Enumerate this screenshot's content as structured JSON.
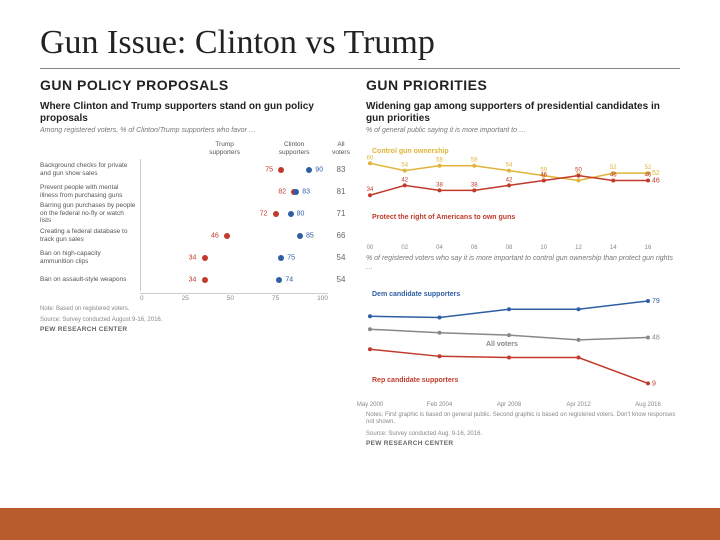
{
  "slide": {
    "title": "Gun Issue: Clinton vs Trump"
  },
  "left": {
    "heading": "GUN POLICY PROPOSALS",
    "chart": {
      "title": "Where Clinton and Trump supporters stand on gun policy proposals",
      "sub": "Among registered voters, % of Clinton/Trump supporters who favor …",
      "legend": {
        "trump": "Trump supporters",
        "clinton": "Clinton supporters",
        "all": "All voters"
      },
      "colors": {
        "trump": "#c13a2b",
        "clinton": "#2e5ea3",
        "axis": "#cccccc"
      },
      "xmin": 0,
      "xmax": 100,
      "xticks": [
        0,
        25,
        50,
        75,
        100
      ],
      "rows": [
        {
          "label": "Background checks for private and gun show sales",
          "trump": 75,
          "clinton": 90,
          "all": 83
        },
        {
          "label": "Prevent people with mental illness from purchasing guns",
          "trump": 82,
          "clinton": 83,
          "all": 81
        },
        {
          "label": "Barring gun purchases by people on the federal no-fly or watch lists",
          "trump": 72,
          "clinton": 80,
          "all": 71
        },
        {
          "label": "Creating a federal database to track gun sales",
          "trump": 46,
          "clinton": 85,
          "all": 66
        },
        {
          "label": "Ban on high-capacity ammunition clips",
          "trump": 34,
          "clinton": 75,
          "all": 54
        },
        {
          "label": "Ban on assault-style weapons",
          "trump": 34,
          "clinton": 74,
          "all": 54
        }
      ],
      "note1": "Note: Based on registered voters.",
      "note2": "Source: Survey conducted August 9-16, 2016.",
      "source": "PEW RESEARCH CENTER"
    }
  },
  "right": {
    "heading": "GUN PRIORITIES",
    "top_chart": {
      "title": "Widening gap among supporters of presidential candidates in gun priorities",
      "sub": "% of general public saying it is more important to …",
      "series": {
        "control": {
          "label": "Control gun ownership",
          "color": "#e0b438",
          "years": [
            2000,
            2002,
            2004,
            2006,
            2008,
            2010,
            2012,
            2014,
            2016
          ],
          "values": [
            60,
            54,
            58,
            58,
            54,
            50,
            46,
            52,
            52
          ]
        },
        "protect": {
          "label": "Protect the right of Americans to own guns",
          "color": "#c13a2b",
          "years": [
            2000,
            2002,
            2004,
            2006,
            2008,
            2010,
            2012,
            2014,
            2016
          ],
          "values": [
            34,
            42,
            38,
            38,
            42,
            46,
            50,
            46,
            46
          ]
        }
      },
      "ylim": [
        0,
        70
      ],
      "xlabels": [
        "00",
        "02",
        "04",
        "06",
        "08",
        "10",
        "12",
        "14",
        "16"
      ],
      "midnote": "% of registered voters who say it is more important to control gun ownership than protect gun rights …"
    },
    "bottom_chart": {
      "series": {
        "dem": {
          "label": "Dem candidate supporters",
          "color": "#2e5ea3",
          "years": [
            2000,
            2004,
            2008,
            2012,
            2016
          ],
          "values": [
            66,
            65,
            72,
            72,
            79
          ]
        },
        "all": {
          "label": "All voters",
          "color": "#888888",
          "years": [
            2000,
            2004,
            2008,
            2012,
            2016
          ],
          "values": [
            55,
            52,
            50,
            46,
            48
          ]
        },
        "rep": {
          "label": "Rep candidate supporters",
          "color": "#c13a2b",
          "years": [
            2000,
            2004,
            2008,
            2012,
            2016
          ],
          "values": [
            38,
            32,
            31,
            31,
            9
          ]
        }
      },
      "ylim": [
        0,
        90
      ],
      "xlabels": [
        "May 2000",
        "Feb 2004",
        "Apr 2008",
        "Apr 2012",
        "Aug 2016"
      ]
    },
    "note1": "Notes: First graphic is based on general public. Second graphic is based on registered voters. Don't know responses not shown.",
    "note2": "Source: Survey conducted Aug. 9-16, 2016.",
    "source": "PEW RESEARCH CENTER"
  },
  "footer": {
    "color": "#b85c2d"
  }
}
